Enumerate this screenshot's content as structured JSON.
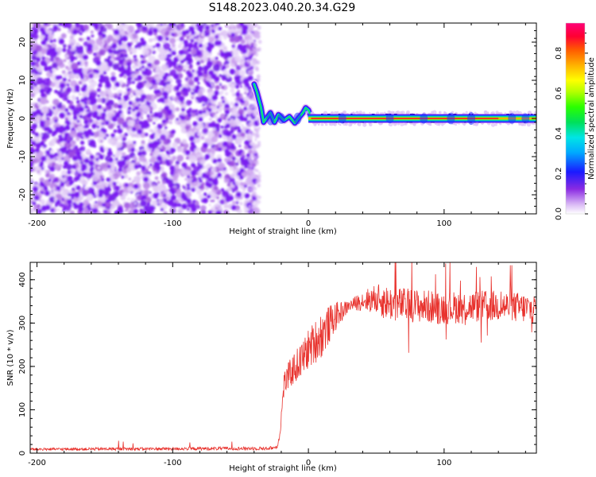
{
  "title": "S148.2023.040.20.34.G29",
  "chart_data": [
    {
      "type": "heatmap",
      "xlabel": "Height of straight line (km)",
      "ylabel": "Frequency (Hz)",
      "xlim": [
        -205,
        168
      ],
      "ylim": [
        -25,
        25
      ],
      "x_ticks": [
        -200,
        -100,
        0,
        100
      ],
      "y_ticks": [
        -20,
        -10,
        0,
        10,
        20
      ],
      "noise_region_x": [
        -205,
        -38
      ],
      "transition_x": [
        -38,
        0
      ],
      "signal_x": [
        0,
        168
      ],
      "signal_center_frequency": 0,
      "colorbar": {
        "label": "Normalized spectral amplitude",
        "range": [
          0,
          0.95
        ],
        "ticks": [
          0.0,
          0.2,
          0.4,
          0.6,
          0.8
        ]
      }
    },
    {
      "type": "line",
      "xlabel": "Height of straight line (km)",
      "ylabel": "SNR (10 * v/v)",
      "xlim": [
        -205,
        168
      ],
      "ylim": [
        0,
        440
      ],
      "x_ticks": [
        -200,
        -100,
        0,
        100
      ],
      "y_ticks": [
        0,
        100,
        200,
        300,
        400
      ],
      "color": "#e8322d",
      "envelope": {
        "x": [
          -205,
          -30,
          -23,
          -21,
          -18,
          -12,
          -5,
          0,
          10,
          20,
          30,
          40,
          50,
          60,
          80,
          100,
          120,
          140,
          168
        ],
        "y": [
          9,
          11,
          14,
          45,
          160,
          190,
          215,
          240,
          275,
          315,
          340,
          352,
          355,
          345,
          340,
          335,
          338,
          340,
          332
        ]
      },
      "noise_amplitude": {
        "x": [
          -205,
          -22,
          -18,
          10,
          30,
          55,
          168
        ],
        "y": [
          3,
          4,
          30,
          55,
          12,
          40,
          35
        ]
      }
    }
  ]
}
